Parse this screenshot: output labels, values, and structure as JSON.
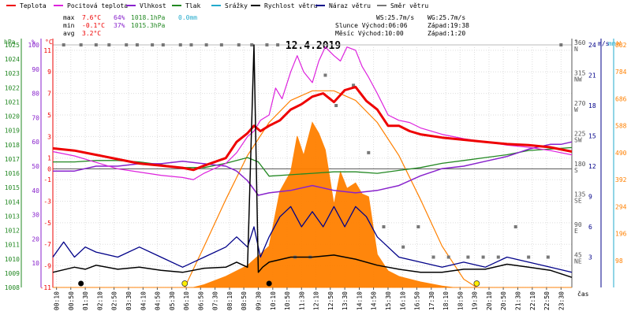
{
  "chart_data": {
    "type": "line",
    "title": "12.4.2019",
    "legend": [
      {
        "label": "Teplota",
        "color": "#ee0000"
      },
      {
        "label": "Pocitová teplota",
        "color": "#dd22dd"
      },
      {
        "label": "Vlhkost",
        "color": "#8822cc"
      },
      {
        "label": "Tlak",
        "color": "#228822"
      },
      {
        "label": "Srážky",
        "color": "#22aacc"
      },
      {
        "label": "Rychlost větru",
        "color": "#000000"
      },
      {
        "label": "Náraz větru",
        "color": "#000088"
      },
      {
        "label": "Směr větru",
        "color": "#777777"
      }
    ],
    "stats": {
      "labels": [
        "max",
        "min",
        "avg"
      ],
      "temp": [
        "7.6°C",
        "-0.1°C",
        "3.2°C"
      ],
      "hum": [
        "64%",
        "37%",
        ""
      ],
      "press": [
        "1018.1hPa",
        "1015.3hPa",
        ""
      ],
      "rain": [
        "0.0mm",
        "",
        ""
      ]
    },
    "info": {
      "ws": "WS:25.7m/s",
      "wg": "WG:25.7m/s",
      "sun_rise": "Slunce Východ:06:06",
      "sun_set": "Západ:19:38",
      "moon_rise": "Měsíc Východ:10:00",
      "moon_set": "Západ:1:20"
    },
    "axis_titles": {
      "hpa": "hPa",
      "pct": "%",
      "degc": "°C",
      "deg": "°",
      "ms": "m/s",
      "mm": "mm",
      "w": "W",
      "time": "čas"
    },
    "scales": {
      "temp_range": [
        -11,
        11.5
      ],
      "pressure_range": [
        1008,
        1025
      ],
      "humidity_range": [
        0,
        100
      ],
      "direction_range": [
        0,
        360
      ],
      "wind_range": [
        0,
        24
      ],
      "solar_range": [
        0,
        882
      ]
    },
    "pressure_ticks": [
      "1025",
      "1024",
      "1023",
      "1022",
      "1021",
      "1020",
      "1019",
      "1018",
      "1017",
      "1016",
      "1015",
      "1014",
      "1013",
      "1012",
      "1011",
      "1010",
      "1009",
      "1008"
    ],
    "humidity_ticks": [
      "100",
      "90",
      "80",
      "70",
      "60",
      "50",
      "40",
      "30",
      "20",
      "10"
    ],
    "temp_ticks": [
      "11",
      "9",
      "7",
      "5",
      "3",
      "1",
      "0",
      "-1",
      "-3",
      "-5",
      "-7",
      "-9",
      "-11"
    ],
    "direction_ticks": [
      {
        "deg": "360",
        "dir": "N"
      },
      {
        "deg": "315",
        "dir": "NW"
      },
      {
        "deg": "270",
        "dir": "W"
      },
      {
        "deg": "225",
        "dir": "SW"
      },
      {
        "deg": "180",
        "dir": "S"
      },
      {
        "deg": "135",
        "dir": "SE"
      },
      {
        "deg": "90",
        "dir": "E"
      },
      {
        "deg": "45",
        "dir": "NE"
      }
    ],
    "wind_ticks": [
      "24",
      "21",
      "18",
      "15",
      "12",
      "9",
      "6",
      "3"
    ],
    "solar_ticks": [
      "882",
      "784",
      "686",
      "588",
      "490",
      "392",
      "294",
      "196",
      "98"
    ],
    "x_ticks": [
      "00:10",
      "00:50",
      "01:30",
      "02:10",
      "02:50",
      "03:30",
      "04:10",
      "04:50",
      "05:30",
      "06:10",
      "06:50",
      "07:30",
      "08:10",
      "08:50",
      "09:30",
      "10:10",
      "10:50",
      "11:30",
      "12:10",
      "12:50",
      "13:30",
      "14:10",
      "14:50",
      "15:30",
      "16:10",
      "16:50",
      "17:30",
      "18:10",
      "18:50",
      "19:30",
      "20:10",
      "20:50",
      "21:30",
      "22:10",
      "22:50",
      "23:30"
    ],
    "x_hours": [
      0.17,
      0.83,
      1.5,
      2.17,
      2.83,
      3.5,
      4.17,
      4.83,
      5.5,
      6.17,
      6.83,
      7.5,
      8.17,
      8.83,
      9.5,
      10.17,
      10.83,
      11.5,
      12.17,
      12.83,
      13.5,
      14.17,
      14.83,
      15.5,
      16.17,
      16.83,
      17.5,
      18.17,
      18.83,
      19.5,
      20.17,
      20.83,
      21.5,
      22.17,
      22.83,
      23.5
    ],
    "series": [
      {
        "name": "Teplota",
        "color": "#ee0000",
        "x": [
          0,
          1,
          2,
          3,
          4,
          5,
          6,
          6.5,
          7,
          8,
          8.5,
          9,
          9.3,
          9.6,
          10,
          10.5,
          11,
          11.5,
          12,
          12.5,
          13,
          13.5,
          14,
          14.5,
          15,
          15.5,
          16,
          16.5,
          17,
          18,
          19,
          20,
          21,
          22,
          23,
          24
        ],
        "values": [
          1.9,
          1.7,
          1.3,
          0.9,
          0.5,
          0.3,
          0.1,
          -0.1,
          0.3,
          1.0,
          2.5,
          3.3,
          4.0,
          3.5,
          4.0,
          4.5,
          5.5,
          6.0,
          6.7,
          7.0,
          6.2,
          7.3,
          7.6,
          6.3,
          5.5,
          4.0,
          4.0,
          3.5,
          3.2,
          2.9,
          2.7,
          2.5,
          2.3,
          2.2,
          2.0,
          1.6
        ]
      },
      {
        "name": "Pocitová teplota",
        "color": "#dd22dd",
        "x": [
          0,
          1,
          2,
          3,
          4,
          5,
          6,
          6.5,
          7,
          8,
          8.5,
          9,
          9.3,
          9.6,
          10,
          10.3,
          10.6,
          11,
          11.3,
          11.6,
          12,
          12.3,
          12.6,
          13,
          13.3,
          13.6,
          14,
          14.3,
          14.6,
          15,
          15.5,
          16,
          16.5,
          17,
          18,
          19,
          20,
          21,
          22,
          23,
          24
        ],
        "values": [
          1.6,
          1.2,
          0.6,
          0,
          -0.3,
          -0.6,
          -0.8,
          -1.0,
          -0.4,
          0.5,
          1.5,
          3.0,
          3.5,
          4.5,
          5.0,
          7.5,
          6.5,
          9.0,
          10.5,
          9.0,
          8.0,
          10.0,
          11.3,
          10.5,
          10.0,
          11.3,
          11.0,
          9.5,
          8.5,
          7.0,
          5.0,
          4.5,
          4.3,
          3.8,
          3.2,
          2.8,
          2.5,
          2.2,
          2.0,
          1.7,
          1.3
        ]
      },
      {
        "name": "Vlhkost",
        "color": "#8822cc",
        "x": [
          0,
          1,
          2,
          3,
          4,
          5,
          6,
          7,
          8,
          8.5,
          9,
          9.5,
          10,
          11,
          12,
          13,
          14,
          15,
          16,
          17,
          18,
          19,
          20,
          21,
          22,
          23,
          23.5,
          24
        ],
        "values": [
          48,
          48,
          50,
          50,
          51,
          51,
          52,
          51,
          50,
          48,
          44,
          38,
          39,
          40,
          42,
          40,
          39,
          40,
          42,
          46,
          49,
          50,
          52,
          54,
          57,
          59,
          59,
          60
        ]
      },
      {
        "name": "Tlak",
        "color": "#228822",
        "x": [
          0,
          1,
          2,
          3,
          4,
          5,
          6,
          7,
          8,
          9,
          9.5,
          10,
          11,
          12,
          13,
          14,
          15,
          16,
          17,
          18,
          19,
          20,
          21,
          22,
          23,
          24
        ],
        "values": [
          1016.8,
          1016.8,
          1016.9,
          1016.9,
          1016.8,
          1016.6,
          1016.4,
          1016.4,
          1016.7,
          1017.1,
          1016.8,
          1015.8,
          1015.9,
          1016.0,
          1016.1,
          1016.1,
          1016.0,
          1016.2,
          1016.4,
          1016.7,
          1016.9,
          1017.1,
          1017.3,
          1017.6,
          1017.7,
          1017.8
        ]
      },
      {
        "name": "Rychlost větru",
        "color": "#000000",
        "x": [
          0,
          1,
          1.5,
          2,
          3,
          4,
          5,
          6,
          7,
          8,
          8.5,
          9,
          9.3,
          9.5,
          9.7,
          10,
          11,
          12,
          13,
          14,
          15,
          16,
          17,
          18,
          19,
          20,
          21,
          22,
          23,
          24
        ],
        "values": [
          1.5,
          2.0,
          1.8,
          2.2,
          1.8,
          2.0,
          1.7,
          1.5,
          1.9,
          2.0,
          2.5,
          2.0,
          25.7,
          1.5,
          2.0,
          2.5,
          3.0,
          3.0,
          3.2,
          2.8,
          2.2,
          1.8,
          1.5,
          1.5,
          1.8,
          1.8,
          2.3,
          2.0,
          1.7,
          1.0
        ]
      },
      {
        "name": "Náraz větru",
        "color": "#000088",
        "x": [
          0,
          0.5,
          1,
          1.5,
          2,
          3,
          4,
          5,
          6,
          7,
          8,
          8.5,
          9,
          9.3,
          9.6,
          10,
          10.5,
          11,
          11.5,
          12,
          12.5,
          13,
          13.5,
          14,
          14.5,
          15,
          15.5,
          16,
          17,
          18,
          19,
          20,
          21,
          22,
          23,
          24
        ],
        "values": [
          3,
          4.5,
          3,
          4,
          3.5,
          3,
          4,
          3,
          2,
          3,
          4,
          5,
          4,
          6,
          3,
          5,
          7,
          8,
          6,
          7.5,
          6,
          8,
          6,
          8,
          7,
          5,
          4,
          3,
          2.5,
          2,
          2.5,
          2,
          3,
          2.5,
          2,
          1.5
        ]
      },
      {
        "name": "Solární záření",
        "color": "#ff8000",
        "x": [
          0,
          6.5,
          7,
          8,
          9,
          10,
          10.5,
          11,
          11.3,
          11.6,
          12,
          12.3,
          12.6,
          13,
          13.3,
          13.6,
          14,
          14.3,
          14.6,
          15,
          15.5,
          16,
          17,
          18,
          18.5,
          24
        ],
        "values": [
          0,
          0,
          10,
          40,
          80,
          150,
          350,
          420,
          550,
          480,
          600,
          560,
          500,
          300,
          420,
          360,
          380,
          340,
          330,
          120,
          60,
          40,
          20,
          5,
          0,
          0
        ]
      },
      {
        "name": "Teoretické záření",
        "color": "#ff8000",
        "x": [
          6.1,
          7,
          8,
          9,
          10,
          11,
          12,
          13,
          14,
          15,
          16,
          17,
          18,
          19,
          19.6
        ],
        "values": [
          0,
          150,
          320,
          480,
          600,
          680,
          715,
          715,
          680,
          600,
          480,
          320,
          150,
          30,
          0
        ]
      }
    ],
    "wind_dir_points": {
      "hours": [
        0.5,
        1.3,
        2.0,
        2.6,
        3.4,
        3.9,
        4.6,
        5.1,
        5.9,
        6.4,
        7.1,
        7.8,
        8.6,
        9.2,
        9.9,
        10.4,
        11.2,
        11.9,
        12.6,
        13.1,
        13.9,
        14.6,
        15.3,
        16.2,
        16.9,
        17.6,
        18.3,
        19.2,
        19.9,
        20.6,
        21.4,
        22.0,
        22.9,
        23.5
      ],
      "degrees": [
        360,
        360,
        360,
        360,
        360,
        360,
        360,
        360,
        360,
        360,
        360,
        360,
        360,
        360,
        360,
        360,
        45,
        45,
        315,
        270,
        300,
        200,
        90,
        60,
        90,
        45,
        45,
        45,
        45,
        45,
        90,
        45,
        45,
        360
      ]
    },
    "markers": {
      "moon": [
        1.3,
        10.0
      ],
      "sun": [
        6.1,
        19.6
      ]
    }
  }
}
